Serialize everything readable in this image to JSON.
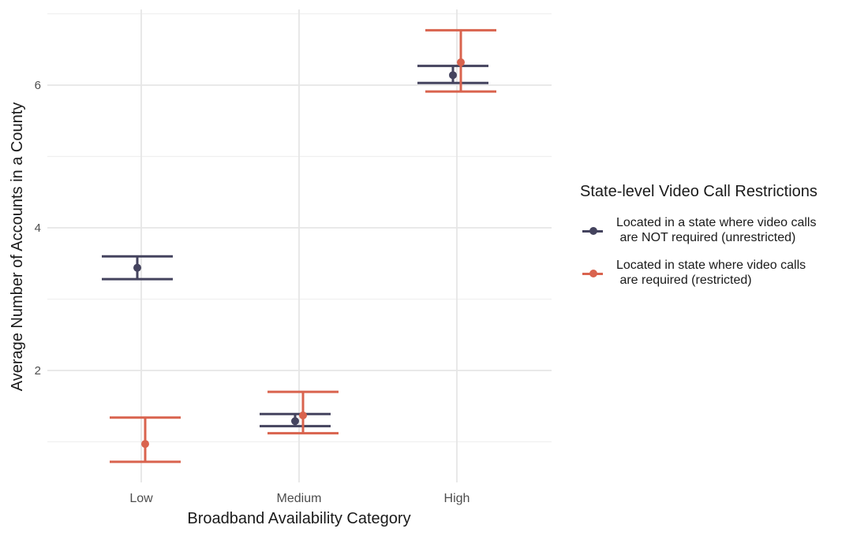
{
  "chart_data": {
    "type": "errorbar",
    "title": "",
    "xlabel": "Broadband Availability Category",
    "ylabel": "Average Number of Accounts in a County",
    "categories": [
      "Low",
      "Medium",
      "High"
    ],
    "yticks": [
      2,
      4,
      6
    ],
    "ylim": [
      0.4,
      7.1
    ],
    "grid": true,
    "legend_position": "right",
    "legend_title": "State-level Video Call Restrictions",
    "series": [
      {
        "name": "Located in a state where video calls\n are NOT required (unrestricted)",
        "color": "#44435E",
        "values": [
          3.44,
          1.29,
          6.14
        ],
        "lower": [
          3.28,
          1.22,
          6.03
        ],
        "upper": [
          3.6,
          1.39,
          6.27
        ],
        "offset": -5
      },
      {
        "name": "Located in state where video calls\n are required (restricted)",
        "color": "#D9634E",
        "values": [
          0.97,
          1.37,
          6.32
        ],
        "lower": [
          0.72,
          1.12,
          5.91
        ],
        "upper": [
          1.34,
          1.7,
          6.77
        ],
        "offset": 5
      }
    ]
  }
}
